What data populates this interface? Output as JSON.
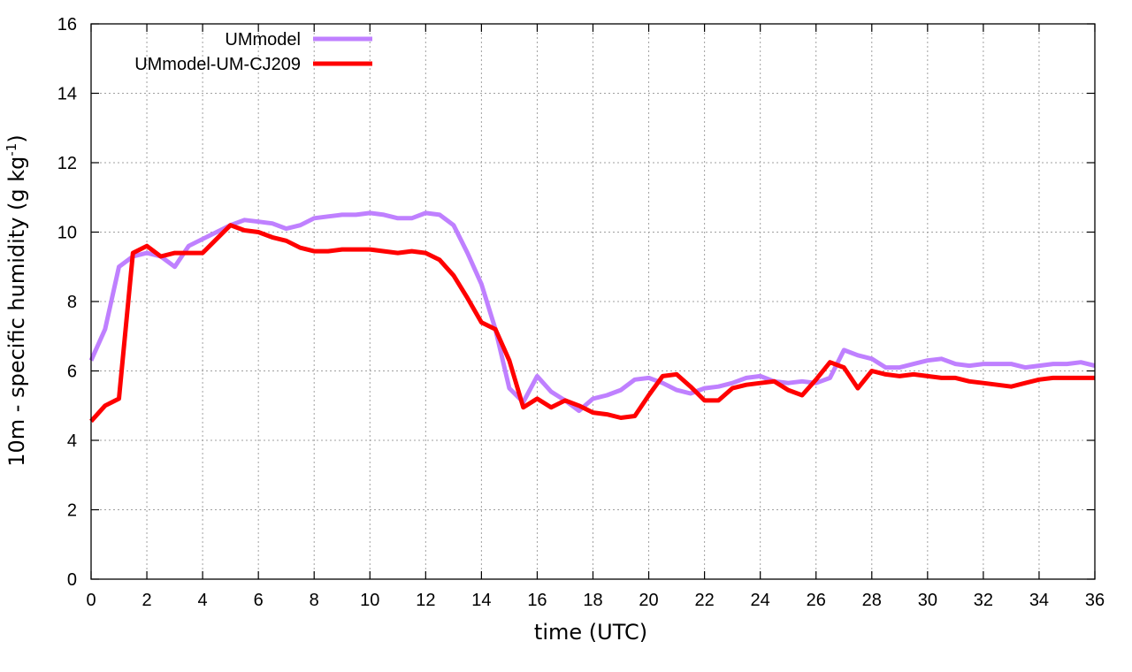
{
  "chart_data": {
    "type": "line",
    "xlabel": "time (UTC)",
    "ylabel": "10m - specific humidity (g kg",
    "ylabel_sup": "-1",
    "ylabel_tail": ")",
    "xlim": [
      0,
      36
    ],
    "ylim": [
      0,
      16
    ],
    "xticks": [
      0,
      2,
      4,
      6,
      8,
      10,
      12,
      14,
      16,
      18,
      20,
      22,
      24,
      26,
      28,
      30,
      32,
      34,
      36
    ],
    "yticks": [
      0,
      2,
      4,
      6,
      8,
      10,
      12,
      14,
      16
    ],
    "grid": true,
    "legend_position": "top-left",
    "x": [
      0,
      0.5,
      1,
      1.5,
      2,
      2.5,
      3,
      3.5,
      4,
      4.5,
      5,
      5.5,
      6,
      6.5,
      7,
      7.5,
      8,
      8.5,
      9,
      9.5,
      10,
      10.5,
      11,
      11.5,
      12,
      12.5,
      13,
      13.5,
      14,
      14.5,
      15,
      15.5,
      16,
      16.5,
      17,
      17.5,
      18,
      18.5,
      19,
      19.5,
      20,
      20.5,
      21,
      21.5,
      22,
      22.5,
      23,
      23.5,
      24,
      24.5,
      25,
      25.5,
      26,
      26.5,
      27,
      27.5,
      28,
      28.5,
      29,
      29.5,
      30,
      30.5,
      31,
      31.5,
      32,
      32.5,
      33,
      33.5,
      34,
      34.5,
      35,
      35.5,
      36
    ],
    "series": [
      {
        "name": "UMmodel",
        "color": "#bf80ff",
        "values": [
          6.3,
          7.2,
          9.0,
          9.3,
          9.4,
          9.3,
          9.0,
          9.6,
          9.8,
          10.0,
          10.2,
          10.35,
          10.3,
          10.25,
          10.1,
          10.2,
          10.4,
          10.45,
          10.5,
          10.5,
          10.55,
          10.5,
          10.4,
          10.4,
          10.55,
          10.5,
          10.2,
          9.4,
          8.5,
          7.2,
          5.5,
          5.1,
          5.85,
          5.4,
          5.15,
          4.85,
          5.2,
          5.3,
          5.45,
          5.75,
          5.8,
          5.65,
          5.45,
          5.35,
          5.5,
          5.55,
          5.65,
          5.8,
          5.85,
          5.7,
          5.65,
          5.7,
          5.65,
          5.8,
          6.6,
          6.45,
          6.35,
          6.1,
          6.1,
          6.2,
          6.3,
          6.35,
          6.2,
          6.15,
          6.2,
          6.2,
          6.2,
          6.1,
          6.15,
          6.2,
          6.2,
          6.25,
          6.15
        ]
      },
      {
        "name": "UMmodel-UM-CJ209",
        "color": "#ff0000",
        "values": [
          4.55,
          5.0,
          5.2,
          9.4,
          9.6,
          9.3,
          9.4,
          9.4,
          9.4,
          9.8,
          10.2,
          10.05,
          10.0,
          9.85,
          9.75,
          9.55,
          9.45,
          9.45,
          9.5,
          9.5,
          9.5,
          9.45,
          9.4,
          9.45,
          9.4,
          9.2,
          8.75,
          8.1,
          7.4,
          7.2,
          6.3,
          4.95,
          5.2,
          4.95,
          5.15,
          5.0,
          4.8,
          4.75,
          4.65,
          4.7,
          5.3,
          5.85,
          5.9,
          5.55,
          5.15,
          5.15,
          5.5,
          5.6,
          5.65,
          5.7,
          5.45,
          5.3,
          5.75,
          6.25,
          6.1,
          5.5,
          6.0,
          5.9,
          5.85,
          5.9,
          5.85,
          5.8,
          5.8,
          5.7,
          5.65,
          5.6,
          5.55,
          5.65,
          5.75,
          5.8,
          5.8,
          5.8,
          5.8
        ]
      }
    ]
  }
}
